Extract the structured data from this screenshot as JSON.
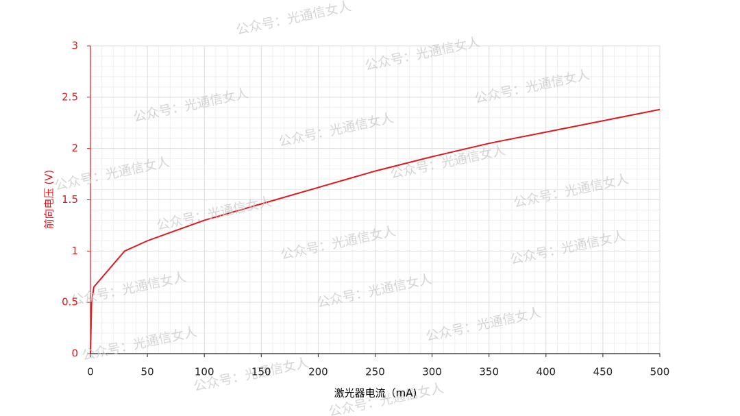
{
  "chart_data": {
    "type": "line",
    "x_label": "激光器电流（mA)",
    "y_label": "前向电压 (V)",
    "watermark": "公众号：光通信女人",
    "series": [
      {
        "name": "前向电压",
        "color": "#e0191e",
        "x": [
          0,
          1,
          3,
          30,
          50,
          100,
          150,
          200,
          250,
          300,
          350,
          400,
          450,
          500
        ],
        "values": [
          0,
          0.5,
          0.65,
          1.0,
          1.1,
          1.3,
          1.46,
          1.62,
          1.78,
          1.92,
          2.05,
          2.16,
          2.27,
          2.38
        ]
      }
    ],
    "xlim": [
      0,
      500
    ],
    "xticks": [
      0,
      50,
      100,
      150,
      200,
      250,
      300,
      350,
      400,
      450,
      500
    ],
    "ylim": [
      0,
      3
    ],
    "yticks": [
      0,
      0.5,
      1,
      1.5,
      2,
      2.5,
      3
    ],
    "y_axis_color": "#e0191e",
    "grid": true
  }
}
